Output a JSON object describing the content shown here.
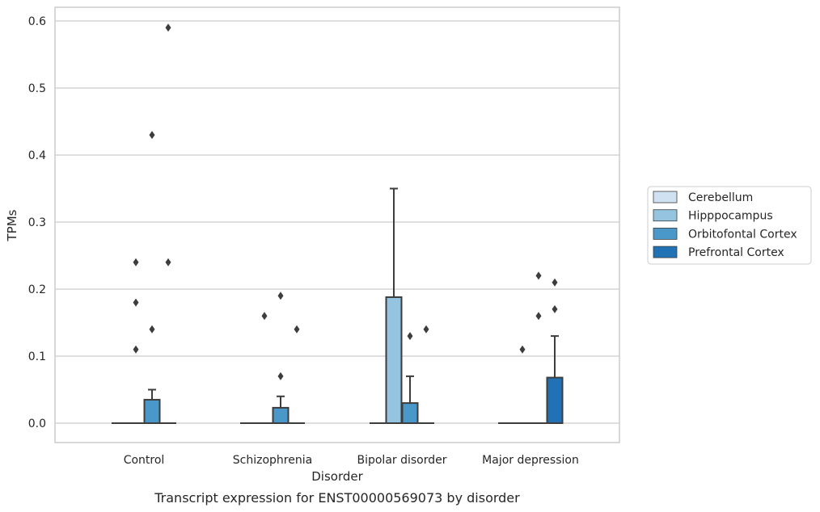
{
  "chart_data": {
    "type": "box",
    "caption": "Transcript expression for ENST00000569073 by disorder",
    "xlabel": "Disorder",
    "ylabel": "TPMs",
    "ylim": [
      -0.03,
      0.62
    ],
    "yticks": [
      0.0,
      0.1,
      0.2,
      0.3,
      0.4,
      0.5,
      0.6
    ],
    "ytick_labels": [
      "0.0",
      "0.1",
      "0.2",
      "0.3",
      "0.4",
      "0.5",
      "0.6"
    ],
    "grid": "horizontal",
    "legend_position": "right",
    "categories": [
      "Control",
      "Schizophrenia",
      "Bipolar disorder",
      "Major depression"
    ],
    "series": [
      {
        "name": "Cerebellum",
        "color": "#d0e1f2",
        "boxes": [
          {
            "q1": 0.0,
            "median": 0.0,
            "q3": 0.0,
            "whisker_low": 0.0,
            "whisker_high": 0.0,
            "outliers": []
          },
          {
            "q1": 0.0,
            "median": 0.0,
            "q3": 0.0,
            "whisker_low": 0.0,
            "whisker_high": 0.0,
            "outliers": []
          },
          {
            "q1": 0.0,
            "median": 0.0,
            "q3": 0.0,
            "whisker_low": 0.0,
            "whisker_high": 0.0,
            "outliers": []
          },
          {
            "q1": 0.0,
            "median": 0.0,
            "q3": 0.0,
            "whisker_low": 0.0,
            "whisker_high": 0.0,
            "outliers": []
          }
        ]
      },
      {
        "name": "Hipppocampus",
        "color": "#94c4df",
        "boxes": [
          {
            "q1": 0.0,
            "median": 0.0,
            "q3": 0.0,
            "whisker_low": 0.0,
            "whisker_high": 0.0,
            "outliers": [
              0.24,
              0.18,
              0.11
            ]
          },
          {
            "q1": 0.0,
            "median": 0.0,
            "q3": 0.0,
            "whisker_low": 0.0,
            "whisker_high": 0.0,
            "outliers": [
              0.16
            ]
          },
          {
            "q1": 0.0,
            "median": 0.0,
            "q3": 0.188,
            "whisker_low": 0.0,
            "whisker_high": 0.35,
            "outliers": []
          },
          {
            "q1": 0.0,
            "median": 0.0,
            "q3": 0.0,
            "whisker_low": 0.0,
            "whisker_high": 0.0,
            "outliers": [
              0.11
            ]
          }
        ]
      },
      {
        "name": "Orbitofontal Cortex",
        "color": "#4a98c9",
        "boxes": [
          {
            "q1": 0.0,
            "median": 0.0,
            "q3": 0.035,
            "whisker_low": 0.0,
            "whisker_high": 0.05,
            "outliers": [
              0.43,
              0.14
            ]
          },
          {
            "q1": 0.0,
            "median": 0.0,
            "q3": 0.023,
            "whisker_low": 0.0,
            "whisker_high": 0.04,
            "outliers": [
              0.19,
              0.07
            ]
          },
          {
            "q1": 0.0,
            "median": 0.0,
            "q3": 0.03,
            "whisker_low": 0.0,
            "whisker_high": 0.07,
            "outliers": [
              0.13
            ]
          },
          {
            "q1": 0.0,
            "median": 0.0,
            "q3": 0.0,
            "whisker_low": 0.0,
            "whisker_high": 0.0,
            "outliers": [
              0.22,
              0.16
            ]
          }
        ]
      },
      {
        "name": "Prefrontal Cortex",
        "color": "#2171b5",
        "boxes": [
          {
            "q1": 0.0,
            "median": 0.0,
            "q3": 0.0,
            "whisker_low": 0.0,
            "whisker_high": 0.0,
            "outliers": [
              0.59,
              0.24
            ]
          },
          {
            "q1": 0.0,
            "median": 0.0,
            "q3": 0.0,
            "whisker_low": 0.0,
            "whisker_high": 0.0,
            "outliers": [
              0.14
            ]
          },
          {
            "q1": 0.0,
            "median": 0.0,
            "q3": 0.0,
            "whisker_low": 0.0,
            "whisker_high": 0.0,
            "outliers": [
              0.14
            ]
          },
          {
            "q1": 0.0,
            "median": 0.0,
            "q3": 0.068,
            "whisker_low": 0.0,
            "whisker_high": 0.13,
            "outliers": [
              0.21,
              0.17
            ]
          }
        ]
      }
    ]
  }
}
